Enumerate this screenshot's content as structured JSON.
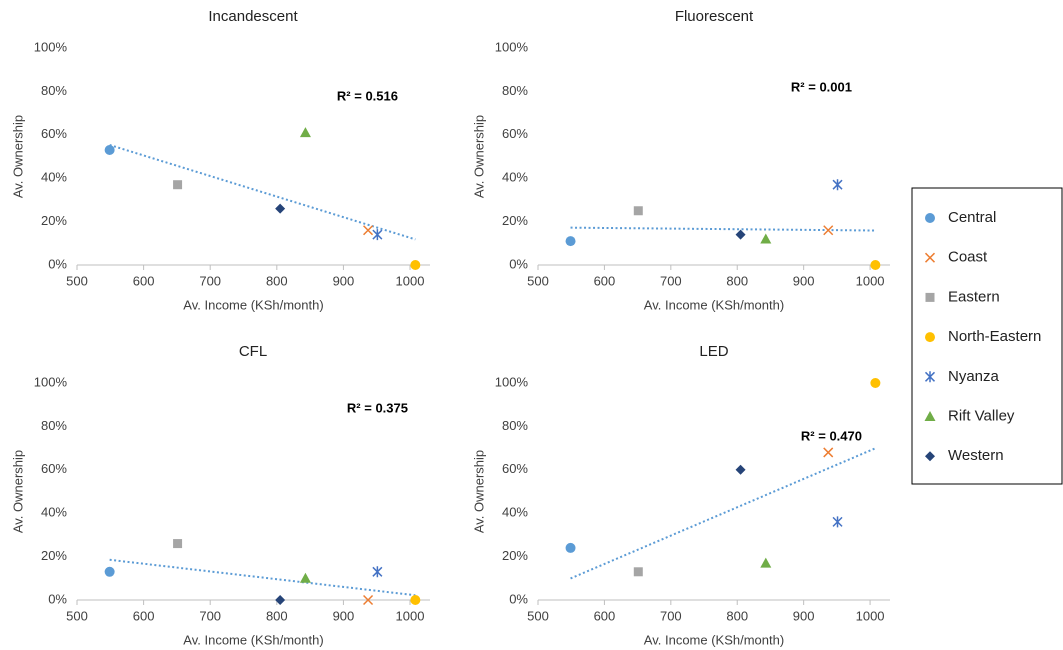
{
  "chart_data": [
    {
      "type": "scatter",
      "title": "Incandescent",
      "x_label": "Av. Income (KSh/month)",
      "y_label": "Av. Ownership",
      "annotation": "R² = 0.516",
      "trendline": "linear",
      "trend_color": "#5b9bd5",
      "xlim": [
        500,
        1030
      ],
      "xticks": [
        500,
        600,
        700,
        800,
        900,
        1000
      ],
      "ylim": [
        0,
        100
      ],
      "yticks": [
        {
          "value": 0,
          "label": "0%"
        },
        {
          "value": 20,
          "label": "20%"
        },
        {
          "value": 40,
          "label": "40%"
        },
        {
          "value": 60,
          "label": "60%"
        },
        {
          "value": 80,
          "label": "80%"
        },
        {
          "value": 100,
          "label": "100%"
        }
      ],
      "series": [
        {
          "name": "Central",
          "color": "#5b9bd5",
          "marker": "circle",
          "x": [
            549
          ],
          "values": [
            53
          ]
        },
        {
          "name": "Coast",
          "color": "#ed7d31",
          "marker": "x",
          "x": [
            937
          ],
          "values": [
            16
          ]
        },
        {
          "name": "Eastern",
          "color": "#a5a5a5",
          "marker": "square",
          "x": [
            651
          ],
          "values": [
            37
          ]
        },
        {
          "name": "North-Eastern",
          "color": "#ffc000",
          "marker": "circle",
          "x": [
            1008
          ],
          "values": [
            0
          ]
        },
        {
          "name": "Nyanza",
          "color": "#4472c4",
          "marker": "asterisk",
          "x": [
            951
          ],
          "values": [
            14
          ]
        },
        {
          "name": "Rift Valley",
          "color": "#70ad47",
          "marker": "triangle",
          "x": [
            843
          ],
          "values": [
            61
          ]
        },
        {
          "name": "Western",
          "color": "#264478",
          "marker": "diamond",
          "x": [
            805
          ],
          "values": [
            26
          ]
        }
      ]
    },
    {
      "type": "scatter",
      "title": "Fluorescent",
      "x_label": "Av. Income (KSh/month)",
      "y_label": "Av. Ownership",
      "annotation": "R² = 0.001",
      "trendline": "linear",
      "trend_color": "#5b9bd5",
      "xlim": [
        500,
        1030
      ],
      "xticks": [
        500,
        600,
        700,
        800,
        900,
        1000
      ],
      "ylim": [
        0,
        100
      ],
      "yticks": [
        {
          "value": 0,
          "label": "0%"
        },
        {
          "value": 20,
          "label": "20%"
        },
        {
          "value": 40,
          "label": "40%"
        },
        {
          "value": 60,
          "label": "60%"
        },
        {
          "value": 80,
          "label": "80%"
        },
        {
          "value": 100,
          "label": "100%"
        }
      ],
      "series": [
        {
          "name": "Central",
          "color": "#5b9bd5",
          "marker": "circle",
          "x": [
            549
          ],
          "values": [
            11
          ]
        },
        {
          "name": "Coast",
          "color": "#ed7d31",
          "marker": "x",
          "x": [
            937
          ],
          "values": [
            16
          ]
        },
        {
          "name": "Eastern",
          "color": "#a5a5a5",
          "marker": "square",
          "x": [
            651
          ],
          "values": [
            25
          ]
        },
        {
          "name": "North-Eastern",
          "color": "#ffc000",
          "marker": "circle",
          "x": [
            1008
          ],
          "values": [
            0
          ]
        },
        {
          "name": "Nyanza",
          "color": "#4472c4",
          "marker": "asterisk",
          "x": [
            951
          ],
          "values": [
            37
          ]
        },
        {
          "name": "Rift Valley",
          "color": "#70ad47",
          "marker": "triangle",
          "x": [
            843
          ],
          "values": [
            12
          ]
        },
        {
          "name": "Western",
          "color": "#264478",
          "marker": "diamond",
          "x": [
            805
          ],
          "values": [
            14
          ]
        }
      ]
    },
    {
      "type": "scatter",
      "title": "CFL",
      "x_label": "Av. Income (KSh/month)",
      "y_label": "Av. Ownership",
      "annotation": "R² = 0.375",
      "trendline": "linear",
      "trend_color": "#5b9bd5",
      "xlim": [
        500,
        1030
      ],
      "xticks": [
        500,
        600,
        700,
        800,
        900,
        1000
      ],
      "ylim": [
        0,
        100
      ],
      "yticks": [
        {
          "value": 0,
          "label": "0%"
        },
        {
          "value": 20,
          "label": "20%"
        },
        {
          "value": 40,
          "label": "40%"
        },
        {
          "value": 60,
          "label": "60%"
        },
        {
          "value": 80,
          "label": "80%"
        },
        {
          "value": 100,
          "label": "100%"
        }
      ],
      "series": [
        {
          "name": "Central",
          "color": "#5b9bd5",
          "marker": "circle",
          "x": [
            549
          ],
          "values": [
            13
          ]
        },
        {
          "name": "Coast",
          "color": "#ed7d31",
          "marker": "x",
          "x": [
            937
          ],
          "values": [
            0
          ]
        },
        {
          "name": "Eastern",
          "color": "#a5a5a5",
          "marker": "square",
          "x": [
            651
          ],
          "values": [
            26
          ]
        },
        {
          "name": "North-Eastern",
          "color": "#ffc000",
          "marker": "circle",
          "x": [
            1008
          ],
          "values": [
            0
          ]
        },
        {
          "name": "Nyanza",
          "color": "#4472c4",
          "marker": "asterisk",
          "x": [
            951
          ],
          "values": [
            13
          ]
        },
        {
          "name": "Rift Valley",
          "color": "#70ad47",
          "marker": "triangle",
          "x": [
            843
          ],
          "values": [
            10
          ]
        },
        {
          "name": "Western",
          "color": "#264478",
          "marker": "diamond",
          "x": [
            805
          ],
          "values": [
            0
          ]
        }
      ]
    },
    {
      "type": "scatter",
      "title": "LED",
      "x_label": "Av. Income (KSh/month)",
      "y_label": "Av. Ownership",
      "annotation": "R² = 0.470",
      "trendline": "linear",
      "trend_color": "#5b9bd5",
      "xlim": [
        500,
        1030
      ],
      "xticks": [
        500,
        600,
        700,
        800,
        900,
        1000
      ],
      "ylim": [
        0,
        100
      ],
      "yticks": [
        {
          "value": 0,
          "label": "0%"
        },
        {
          "value": 20,
          "label": "20%"
        },
        {
          "value": 40,
          "label": "40%"
        },
        {
          "value": 60,
          "label": "60%"
        },
        {
          "value": 80,
          "label": "80%"
        },
        {
          "value": 100,
          "label": "100%"
        }
      ],
      "series": [
        {
          "name": "Central",
          "color": "#5b9bd5",
          "marker": "circle",
          "x": [
            549
          ],
          "values": [
            24
          ]
        },
        {
          "name": "Coast",
          "color": "#ed7d31",
          "marker": "x",
          "x": [
            937
          ],
          "values": [
            68
          ]
        },
        {
          "name": "Eastern",
          "color": "#a5a5a5",
          "marker": "square",
          "x": [
            651
          ],
          "values": [
            13
          ]
        },
        {
          "name": "North-Eastern",
          "color": "#ffc000",
          "marker": "circle",
          "x": [
            1008
          ],
          "values": [
            100
          ]
        },
        {
          "name": "Nyanza",
          "color": "#4472c4",
          "marker": "asterisk",
          "x": [
            951
          ],
          "values": [
            36
          ]
        },
        {
          "name": "Rift Valley",
          "color": "#70ad47",
          "marker": "triangle",
          "x": [
            843
          ],
          "values": [
            17
          ]
        },
        {
          "name": "Western",
          "color": "#264478",
          "marker": "diamond",
          "x": [
            805
          ],
          "values": [
            60
          ]
        }
      ]
    }
  ]
}
